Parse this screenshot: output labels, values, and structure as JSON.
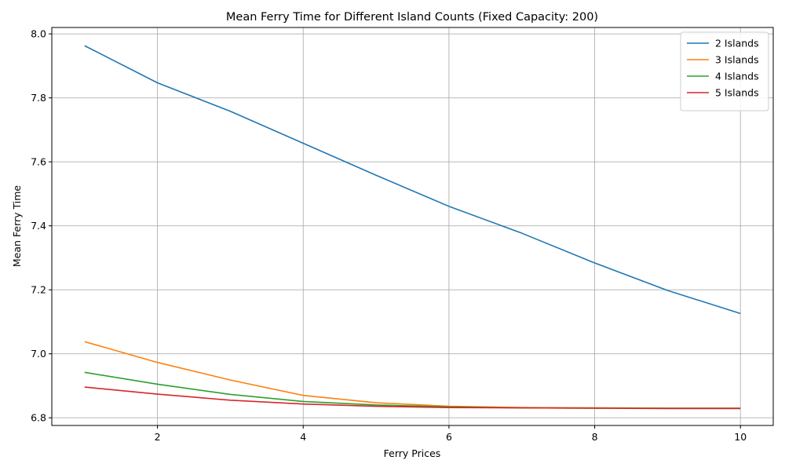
{
  "chart_data": {
    "type": "line",
    "title": "Mean Ferry Time for Different Island Counts (Fixed Capacity: 200)",
    "xlabel": "Ferry Prices",
    "ylabel": "Mean Ferry Time",
    "x": [
      1,
      2,
      3,
      4,
      5,
      6,
      7,
      8,
      9,
      10
    ],
    "xlim": [
      0.55,
      10.45
    ],
    "ylim": [
      6.776,
      8.02
    ],
    "xticks": [
      2,
      4,
      6,
      8,
      10
    ],
    "yticks": [
      6.8,
      7.0,
      7.2,
      7.4,
      7.6,
      7.8,
      8.0
    ],
    "grid": true,
    "legend_position": "top-right",
    "series": [
      {
        "name": "2 Islands",
        "color": "#1f77b4",
        "values": [
          7.963,
          7.847,
          7.758,
          7.658,
          7.558,
          7.461,
          7.377,
          7.284,
          7.198,
          7.126
        ]
      },
      {
        "name": "3 Islands",
        "color": "#ff7f0e",
        "values": [
          7.038,
          6.973,
          6.918,
          6.87,
          6.847,
          6.836,
          6.832,
          6.831,
          6.83,
          6.83
        ]
      },
      {
        "name": "4 Islands",
        "color": "#2ca02c",
        "values": [
          6.942,
          6.905,
          6.873,
          6.851,
          6.84,
          6.834,
          6.831,
          6.83,
          6.83,
          6.83
        ]
      },
      {
        "name": "5 Islands",
        "color": "#d62728",
        "values": [
          6.896,
          6.874,
          6.855,
          6.843,
          6.836,
          6.832,
          6.831,
          6.83,
          6.829,
          6.829
        ]
      }
    ]
  }
}
